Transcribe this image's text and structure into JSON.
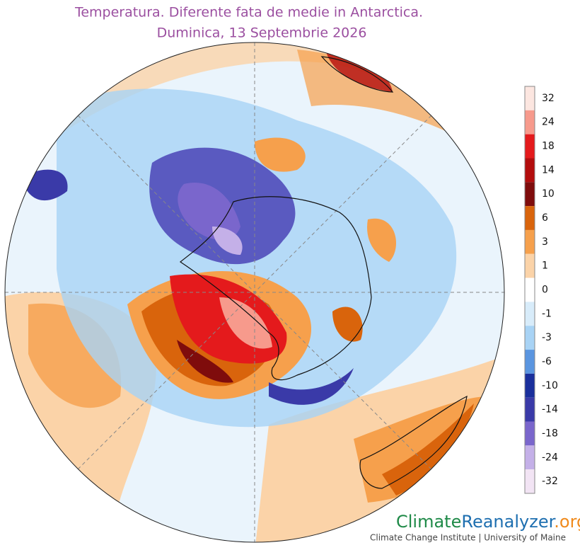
{
  "title": [
    "Temperatura. Diferente fata de medie in Antarctica.",
    "Duminica, 13 Septembrie 2026"
  ],
  "colorbar": {
    "ticks": [
      32,
      24,
      18,
      14,
      10,
      6,
      3,
      1,
      0,
      -1,
      -3,
      -6,
      -10,
      -14,
      -18,
      -24,
      -32
    ],
    "colors": [
      "#fce6e0",
      "#f79a8c",
      "#e41a1c",
      "#b30d0d",
      "#7f0c0c",
      "#d9640c",
      "#f6a04c",
      "#fbd3a8",
      "#ffffff",
      "#d8ecfa",
      "#a8d3f5",
      "#5a95e0",
      "#1a2f9c",
      "#3a3aa8",
      "#7a66cc",
      "#c4b0e8",
      "#f2e4f4"
    ]
  },
  "branding": {
    "parts": [
      "Climate",
      "Reanalyzer",
      ".org"
    ],
    "part_colors": [
      "#1f8a48",
      "#1e6fb0",
      "#f08a1c"
    ],
    "subtitle": "Climate Change Institute | University of Maine"
  }
}
